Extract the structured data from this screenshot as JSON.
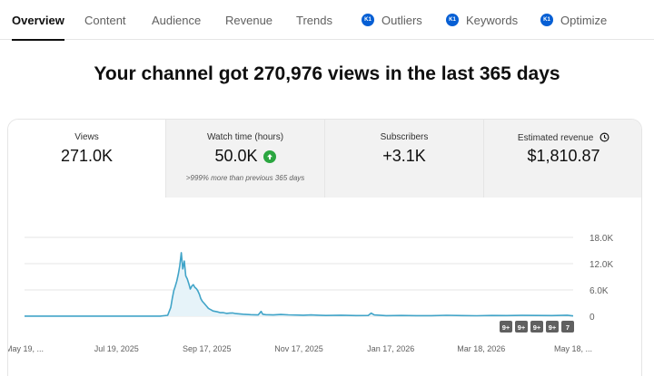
{
  "tabs": [
    {
      "label": "Overview",
      "active": true,
      "badge": false
    },
    {
      "label": "Content",
      "active": false,
      "badge": false
    },
    {
      "label": "Audience",
      "active": false,
      "badge": false
    },
    {
      "label": "Revenue",
      "active": false,
      "badge": false
    },
    {
      "label": "Trends",
      "active": false,
      "badge": false
    },
    {
      "label": "Outliers",
      "active": false,
      "badge": true
    },
    {
      "label": "Keywords",
      "active": false,
      "badge": true
    },
    {
      "label": "Optimize",
      "active": false,
      "badge": true
    }
  ],
  "badge_text": "K1",
  "headline": "Your channel got 270,976 views in the last 365 days",
  "metrics": [
    {
      "label": "Views",
      "value": "271.0K",
      "sub": "",
      "selected": true
    },
    {
      "label": "Watch time (hours)",
      "value": "50.0K",
      "sub": ">999% more than previous 365 days",
      "selected": false,
      "trend": "up"
    },
    {
      "label": "Subscribers",
      "value": "+3.1K",
      "sub": "",
      "selected": false
    },
    {
      "label": "Estimated revenue",
      "value": "$1,810.87",
      "sub": "",
      "selected": false,
      "icon": "clock-icon"
    }
  ],
  "colors": {
    "accent": "#065fd4",
    "line": "#41a4c8",
    "fill": "#e6f3f9",
    "up": "#2ba640"
  },
  "chart_data": {
    "type": "area",
    "title": "",
    "xlabel": "",
    "ylabel": "",
    "ylim": [
      0,
      18000
    ],
    "y_ticks": [
      "18.0K",
      "12.0K",
      "6.0K",
      "0"
    ],
    "y_tick_values": [
      18000,
      12000,
      6000,
      0
    ],
    "x_tick_labels": [
      "May 19, ...",
      "Jul 19, 2025",
      "Sep 17, 2025",
      "Nov 17, 2025",
      "Jan 17, 2026",
      "Mar 18, 2026",
      "May 18, ..."
    ],
    "x_tick_days": [
      0,
      61,
      121,
      182,
      243,
      303,
      364
    ],
    "x_domain": [
      0,
      364
    ],
    "series": [
      {
        "points": [
          [
            0,
            20
          ],
          [
            30,
            20
          ],
          [
            60,
            20
          ],
          [
            80,
            20
          ],
          [
            90,
            30
          ],
          [
            95,
            200
          ],
          [
            97,
            2000
          ],
          [
            98,
            4000
          ],
          [
            99,
            5800
          ],
          [
            100,
            6800
          ],
          [
            101,
            8000
          ],
          [
            102,
            9600
          ],
          [
            103,
            11500
          ],
          [
            104,
            14500
          ],
          [
            105,
            10800
          ],
          [
            106,
            12600
          ],
          [
            107,
            9200
          ],
          [
            108,
            8500
          ],
          [
            109,
            7400
          ],
          [
            110,
            6200
          ],
          [
            111,
            6900
          ],
          [
            112,
            7200
          ],
          [
            113,
            6600
          ],
          [
            114,
            6300
          ],
          [
            115,
            5800
          ],
          [
            116,
            5000
          ],
          [
            117,
            4000
          ],
          [
            118,
            3400
          ],
          [
            119,
            3000
          ],
          [
            120,
            2600
          ],
          [
            121,
            2200
          ],
          [
            122,
            1800
          ],
          [
            123,
            1600
          ],
          [
            124,
            1400
          ],
          [
            125,
            1200
          ],
          [
            128,
            1000
          ],
          [
            130,
            800
          ],
          [
            132,
            800
          ],
          [
            134,
            650
          ],
          [
            136,
            700
          ],
          [
            138,
            750
          ],
          [
            140,
            600
          ],
          [
            145,
            450
          ],
          [
            150,
            350
          ],
          [
            155,
            300
          ],
          [
            157,
            1100
          ],
          [
            158,
            450
          ],
          [
            160,
            350
          ],
          [
            165,
            300
          ],
          [
            170,
            400
          ],
          [
            175,
            320
          ],
          [
            180,
            260
          ],
          [
            185,
            220
          ],
          [
            190,
            280
          ],
          [
            195,
            220
          ],
          [
            200,
            160
          ],
          [
            210,
            220
          ],
          [
            220,
            140
          ],
          [
            228,
            160
          ],
          [
            230,
            700
          ],
          [
            232,
            300
          ],
          [
            240,
            120
          ],
          [
            250,
            160
          ],
          [
            260,
            130
          ],
          [
            270,
            120
          ],
          [
            280,
            210
          ],
          [
            290,
            150
          ],
          [
            300,
            100
          ],
          [
            310,
            160
          ],
          [
            320,
            140
          ],
          [
            330,
            190
          ],
          [
            340,
            160
          ],
          [
            350,
            140
          ],
          [
            360,
            220
          ],
          [
            364,
            60
          ]
        ]
      }
    ],
    "annotations": [
      "9+",
      "9+",
      "9+",
      "9+",
      "7"
    ]
  }
}
